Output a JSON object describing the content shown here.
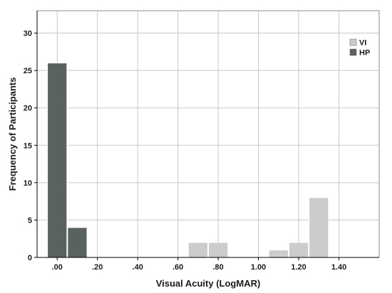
{
  "chart_data": {
    "type": "bar",
    "title": "",
    "xlabel": "Visual Acuity (LogMAR)",
    "ylabel": "Frequency of Participants",
    "xlim": [
      -0.1,
      1.6
    ],
    "ylim": [
      0,
      33
    ],
    "x_ticks": [
      0.0,
      0.2,
      0.4,
      0.6,
      0.8,
      1.0,
      1.2,
      1.4
    ],
    "x_tick_labels": [
      ".00",
      ".20",
      ".40",
      ".60",
      ".80",
      "1.00",
      "1.20",
      "1.40"
    ],
    "y_ticks": [
      0,
      5,
      10,
      15,
      20,
      25,
      30
    ],
    "y_tick_labels": [
      "0",
      "5",
      "10",
      "15",
      "20",
      "25",
      "30"
    ],
    "bin_width": 0.1,
    "grid": true,
    "legend_position": "top-right",
    "series": [
      {
        "name": "VI",
        "color": "#cccccc",
        "bins": [
          {
            "x": 0.7,
            "value": 2
          },
          {
            "x": 0.8,
            "value": 2
          },
          {
            "x": 1.1,
            "value": 1
          },
          {
            "x": 1.2,
            "value": 2
          },
          {
            "x": 1.3,
            "value": 8
          }
        ]
      },
      {
        "name": "HP",
        "color": "#5a625e",
        "bins": [
          {
            "x": 0.0,
            "value": 26
          },
          {
            "x": 0.1,
            "value": 4
          }
        ]
      }
    ]
  }
}
